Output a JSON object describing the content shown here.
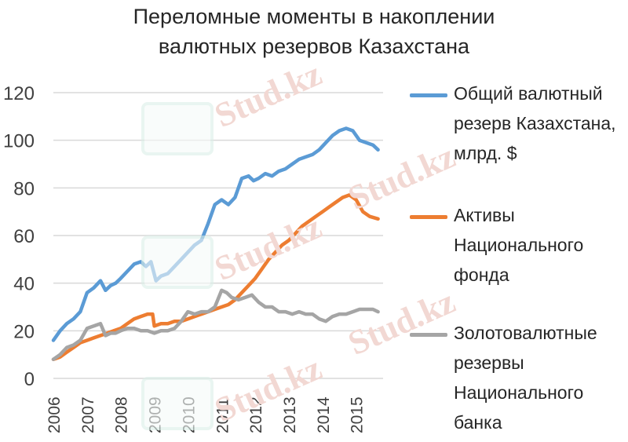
{
  "title_lines": [
    "Переломные моменты в накоплении",
    "валютных резервов Казахстана"
  ],
  "watermark_text": "Stud.kz",
  "colors": {
    "blue": "#5b9bd5",
    "orange": "#ed7d31",
    "gray": "#a5a5a5",
    "grid": "#d9d9d9"
  },
  "chart_data": {
    "type": "line",
    "title": "Переломные моменты в накоплении валютных резервов Казахстана",
    "ylim": [
      0,
      120
    ],
    "yticks": [
      0,
      20,
      40,
      60,
      80,
      100,
      120
    ],
    "xlim": [
      2006,
      2015.8
    ],
    "xticks": [
      "2006",
      "2007",
      "2008",
      "2009",
      "2010",
      "2011",
      "2012",
      "2013",
      "2014",
      "2015"
    ],
    "grid": true,
    "legend_position": "right",
    "series": [
      {
        "name": "Общий валютный резерв Казахстана, млрд. $",
        "color": "#5b9bd5",
        "x": [
          2006.0,
          2006.2,
          2006.4,
          2006.6,
          2006.8,
          2007.0,
          2007.2,
          2007.4,
          2007.55,
          2007.7,
          2007.85,
          2008.0,
          2008.2,
          2008.4,
          2008.6,
          2008.75,
          2008.9,
          2009.05,
          2009.2,
          2009.4,
          2009.6,
          2009.8,
          2010.0,
          2010.2,
          2010.4,
          2010.6,
          2010.8,
          2011.0,
          2011.2,
          2011.4,
          2011.6,
          2011.8,
          2011.95,
          2012.1,
          2012.3,
          2012.5,
          2012.7,
          2012.9,
          2013.1,
          2013.3,
          2013.5,
          2013.7,
          2013.9,
          2014.1,
          2014.3,
          2014.5,
          2014.7,
          2014.9,
          2015.1,
          2015.3,
          2015.5,
          2015.65
        ],
        "y": [
          16,
          20,
          23,
          25,
          28,
          36,
          38,
          41,
          37,
          39,
          40,
          42,
          45,
          48,
          49,
          47,
          49,
          41,
          43,
          44,
          47,
          50,
          53,
          56,
          58,
          65,
          73,
          75,
          73,
          76,
          84,
          85,
          83,
          84,
          86,
          85,
          87,
          88,
          90,
          92,
          93,
          94,
          96,
          99,
          102,
          104,
          105,
          104,
          100,
          99,
          98,
          96
        ]
      },
      {
        "name": "Активы Национального фонда",
        "color": "#ed7d31",
        "x": [
          2006.0,
          2006.2,
          2006.4,
          2006.6,
          2006.8,
          2007.0,
          2007.2,
          2007.4,
          2007.6,
          2007.8,
          2008.0,
          2008.2,
          2008.4,
          2008.6,
          2008.8,
          2008.95,
          2009.0,
          2009.2,
          2009.4,
          2009.6,
          2009.8,
          2010.0,
          2010.2,
          2010.4,
          2010.6,
          2010.8,
          2011.0,
          2011.2,
          2011.4,
          2011.6,
          2011.8,
          2012.0,
          2012.2,
          2012.4,
          2012.6,
          2012.8,
          2013.0,
          2013.2,
          2013.4,
          2013.6,
          2013.8,
          2014.0,
          2014.2,
          2014.4,
          2014.6,
          2014.8,
          2015.0,
          2015.2,
          2015.4,
          2015.65
        ],
        "y": [
          8,
          9,
          11,
          13,
          15,
          16,
          17,
          18,
          19,
          20,
          21,
          23,
          25,
          26,
          27,
          27,
          22,
          23,
          23,
          24,
          24,
          25,
          26,
          27,
          28,
          29,
          30,
          31,
          33,
          36,
          39,
          42,
          46,
          50,
          53,
          56,
          58,
          61,
          64,
          66,
          68,
          70,
          72,
          74,
          76,
          77,
          75,
          70,
          68,
          67
        ]
      },
      {
        "name": "Золотовалютные резервы Национального банка",
        "color": "#a5a5a5",
        "x": [
          2006.0,
          2006.2,
          2006.4,
          2006.6,
          2006.8,
          2007.0,
          2007.2,
          2007.4,
          2007.55,
          2007.7,
          2007.85,
          2008.0,
          2008.2,
          2008.4,
          2008.6,
          2008.8,
          2009.0,
          2009.2,
          2009.4,
          2009.6,
          2009.8,
          2010.0,
          2010.2,
          2010.4,
          2010.6,
          2010.8,
          2011.0,
          2011.15,
          2011.3,
          2011.5,
          2011.7,
          2011.9,
          2012.1,
          2012.3,
          2012.5,
          2012.7,
          2012.9,
          2013.1,
          2013.3,
          2013.5,
          2013.7,
          2013.9,
          2014.1,
          2014.3,
          2014.5,
          2014.7,
          2014.9,
          2015.1,
          2015.3,
          2015.5,
          2015.65
        ],
        "y": [
          8,
          10,
          13,
          14,
          16,
          21,
          22,
          23,
          18,
          19,
          19,
          20,
          21,
          21,
          20,
          20,
          19,
          20,
          20,
          21,
          24,
          28,
          27,
          28,
          28,
          30,
          37,
          36,
          34,
          33,
          34,
          35,
          32,
          30,
          30,
          28,
          28,
          27,
          28,
          27,
          27,
          25,
          24,
          26,
          27,
          27,
          28,
          29,
          29,
          29,
          28
        ]
      }
    ]
  }
}
